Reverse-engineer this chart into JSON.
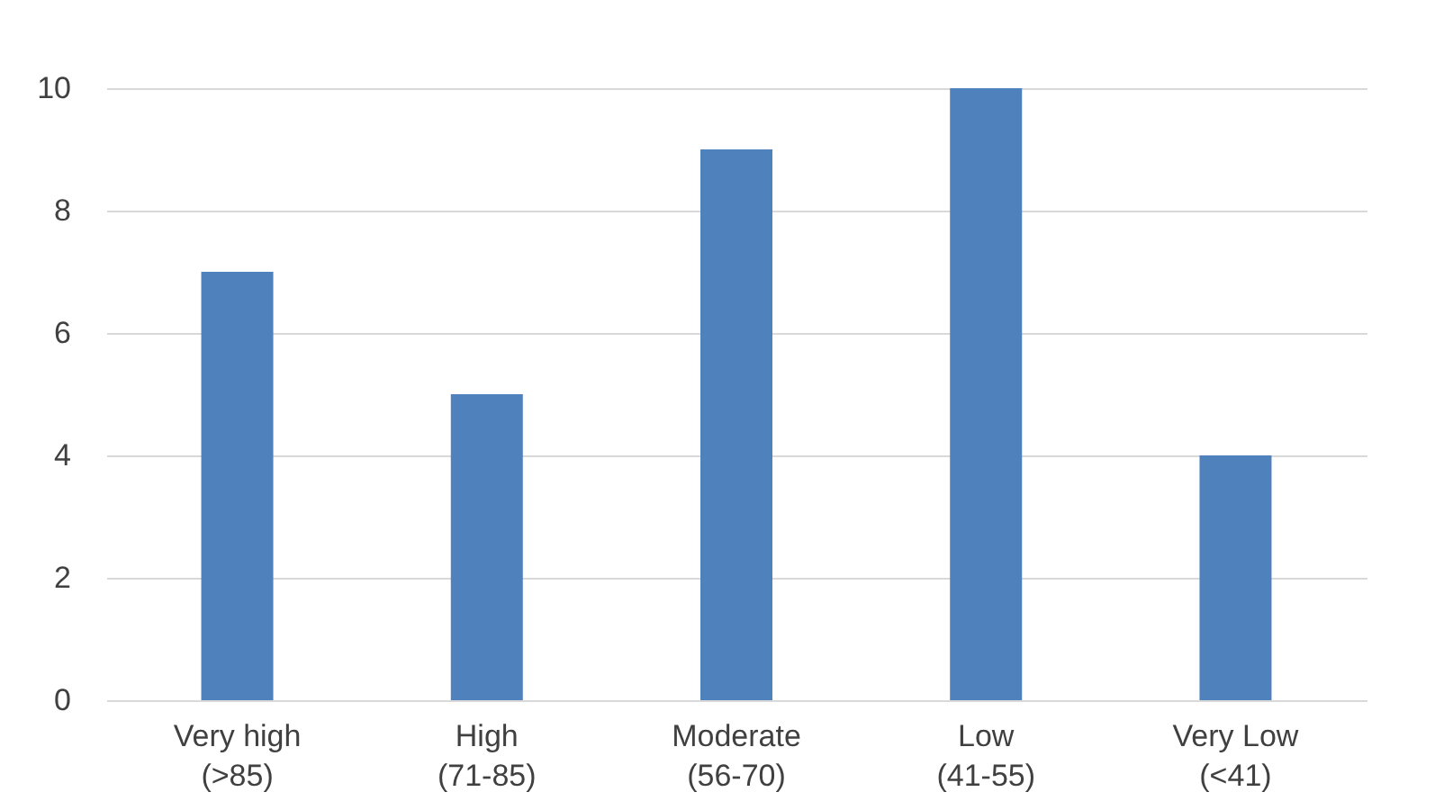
{
  "chart_data": {
    "type": "bar",
    "categories": [
      "Very high (>85)",
      "High (71-85)",
      "Moderate (56-70)",
      "Low (41-55)",
      "Very Low (<41)"
    ],
    "values": [
      7,
      5,
      9,
      10,
      4
    ],
    "color": "#4f81bd",
    "ylim": [
      0,
      10
    ],
    "yticks": [
      0,
      2,
      4,
      6,
      8,
      10
    ],
    "grid": "y"
  }
}
